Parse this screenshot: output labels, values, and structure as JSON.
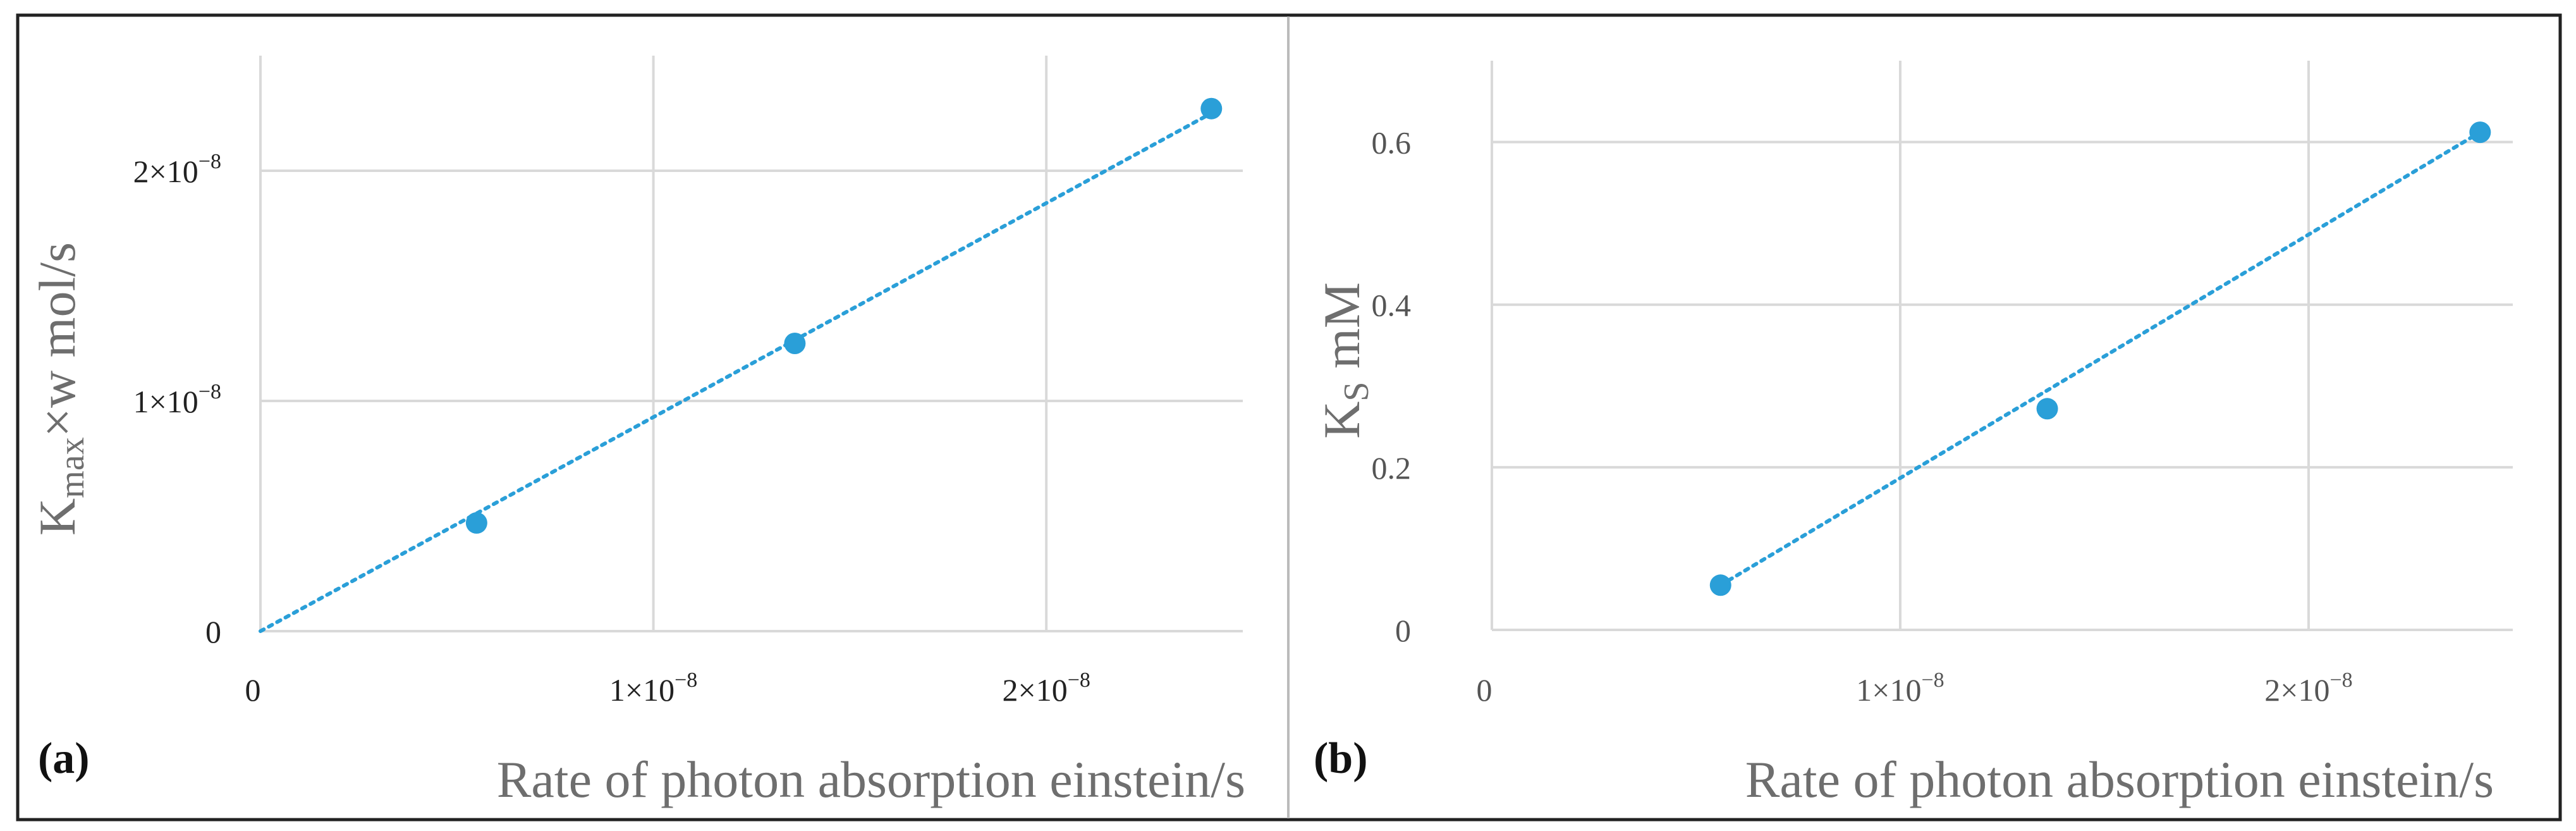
{
  "colors": {
    "accent": "#2a9fd8",
    "grid": "#d9d9d9",
    "frame": "#222222",
    "divider": "#bbbbbb"
  },
  "chart_data": [
    {
      "type": "scatter",
      "panel_label": "(a)",
      "xlabel": "Rate of photon absorption  einstein/s",
      "ylabel": {
        "base": "K",
        "sub": "max",
        "rest": "×w  mol/s"
      },
      "x": [
        5.5e-09,
        1.36e-08,
        2.42e-08
      ],
      "y": [
        4.7e-09,
        1.25e-08,
        2.27e-08
      ],
      "xlim": [
        0,
        2.5e-08
      ],
      "ylim": [
        0,
        2.5e-08
      ],
      "trendline": {
        "style": "dotted",
        "x": [
          0,
          2.42e-08
        ],
        "y": [
          0,
          2.25e-08
        ]
      },
      "x_ticks": [
        {
          "value": 0,
          "mant": "0",
          "exp": ""
        },
        {
          "value": 1e-08,
          "mant": "1×10",
          "exp": "−8"
        },
        {
          "value": 2e-08,
          "mant": "2×10",
          "exp": "−8"
        }
      ],
      "y_ticks": [
        {
          "value": 0,
          "mant": "0",
          "exp": ""
        },
        {
          "value": 1e-08,
          "mant": "1×10",
          "exp": "−8"
        },
        {
          "value": 2e-08,
          "mant": "2×10",
          "exp": "−8"
        }
      ],
      "grid": true
    },
    {
      "type": "scatter",
      "panel_label": "(b)",
      "xlabel": "Rate of photon absorption  einstein/s",
      "ylabel": {
        "base": "K",
        "sub": "S",
        "rest": "  mM"
      },
      "x": [
        5.6e-09,
        1.36e-08,
        2.42e-08
      ],
      "y": [
        0.055,
        0.272,
        0.612
      ],
      "xlim": [
        0,
        2.5e-08
      ],
      "ylim": [
        0,
        0.7
      ],
      "trendline": {
        "style": "dotted",
        "x": [
          5.6e-09,
          2.42e-08
        ],
        "y": [
          0.055,
          0.612
        ]
      },
      "x_ticks": [
        {
          "value": 0,
          "mant": "0",
          "exp": ""
        },
        {
          "value": 1e-08,
          "mant": "1×10",
          "exp": "−8"
        },
        {
          "value": 2e-08,
          "mant": "2×10",
          "exp": "−8"
        }
      ],
      "y_ticks": [
        {
          "value": 0,
          "mant": "0",
          "exp": ""
        },
        {
          "value": 0.2,
          "mant": "0.2",
          "exp": ""
        },
        {
          "value": 0.4,
          "mant": "0.4",
          "exp": ""
        },
        {
          "value": 0.6,
          "mant": "0.6",
          "exp": ""
        }
      ],
      "grid": true
    }
  ]
}
